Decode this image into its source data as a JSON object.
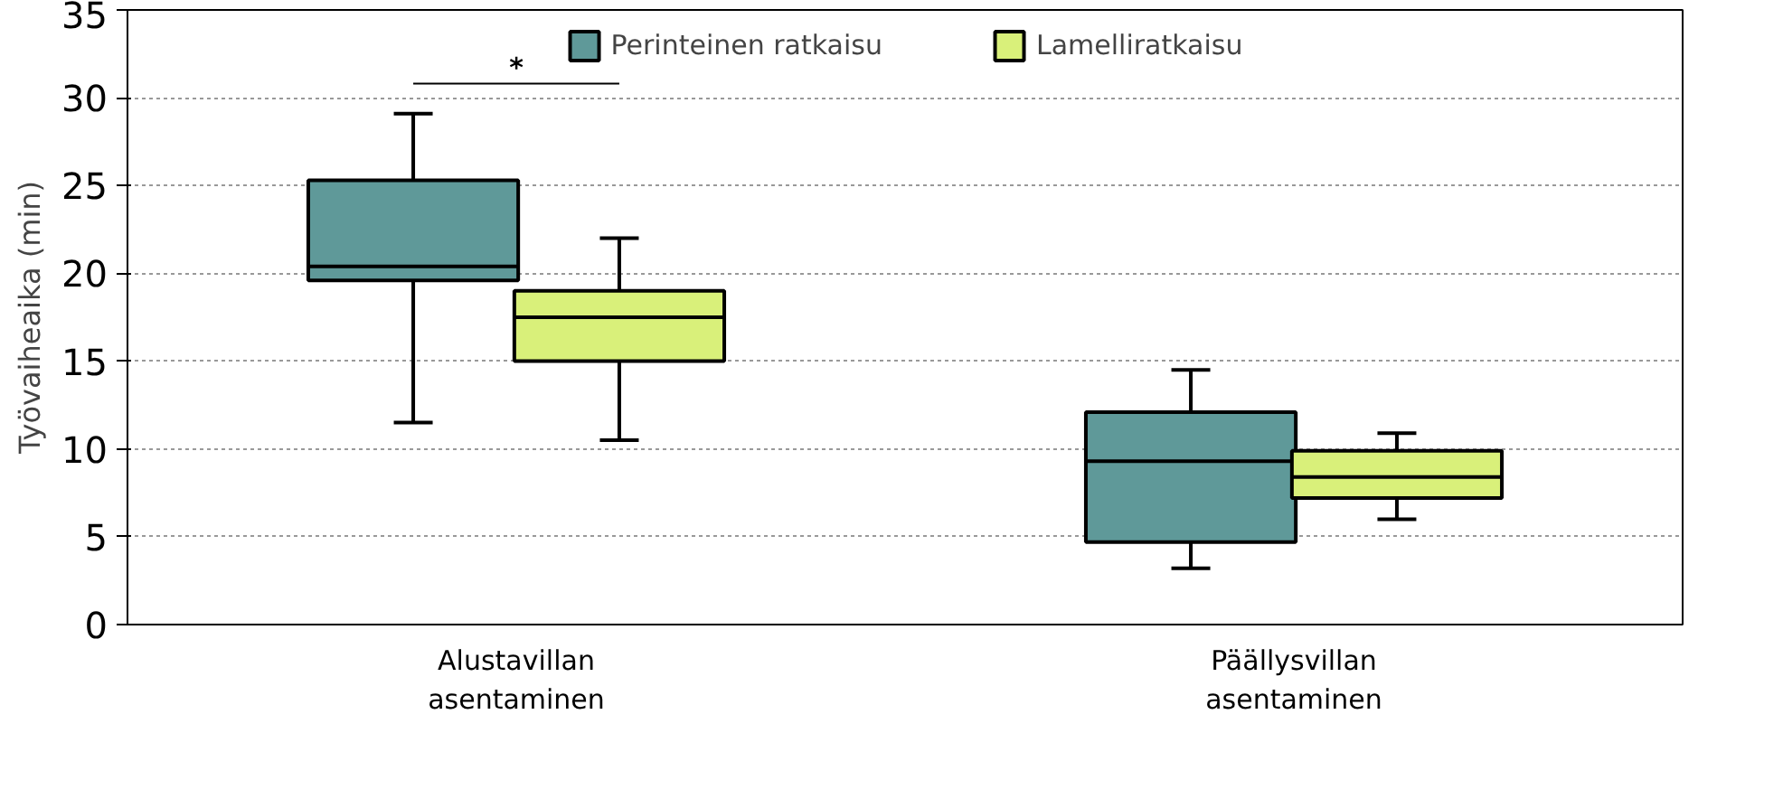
{
  "chart_data": {
    "type": "box",
    "ylabel": "Työvaiheaika (min)",
    "categories": [
      "Alustavillan asentaminen",
      "Päällysvillan asentaminen"
    ],
    "series": [
      {
        "name": "Perinteinen ratkaisu",
        "color": "#5f9999",
        "boxes": [
          {
            "low": 11.5,
            "q1": 19.6,
            "median": 20.4,
            "q3": 25.3,
            "high": 29.1
          },
          {
            "low": 3.2,
            "q1": 4.7,
            "median": 9.3,
            "q3": 12.1,
            "high": 14.5
          }
        ]
      },
      {
        "name": "Lamelliratkaisu",
        "color": "#d9f07a",
        "boxes": [
          {
            "low": 10.5,
            "q1": 15.0,
            "median": 17.5,
            "q3": 19.0,
            "high": 22.0
          },
          {
            "low": 6.0,
            "q1": 7.2,
            "median": 8.4,
            "q3": 9.9,
            "high": 10.9
          }
        ]
      }
    ],
    "annotations": [
      "*"
    ],
    "ylim": [
      0,
      35
    ],
    "yticks": [
      0,
      5,
      10,
      15,
      20,
      25,
      30,
      35
    ],
    "grid": "y",
    "legend": "top"
  }
}
